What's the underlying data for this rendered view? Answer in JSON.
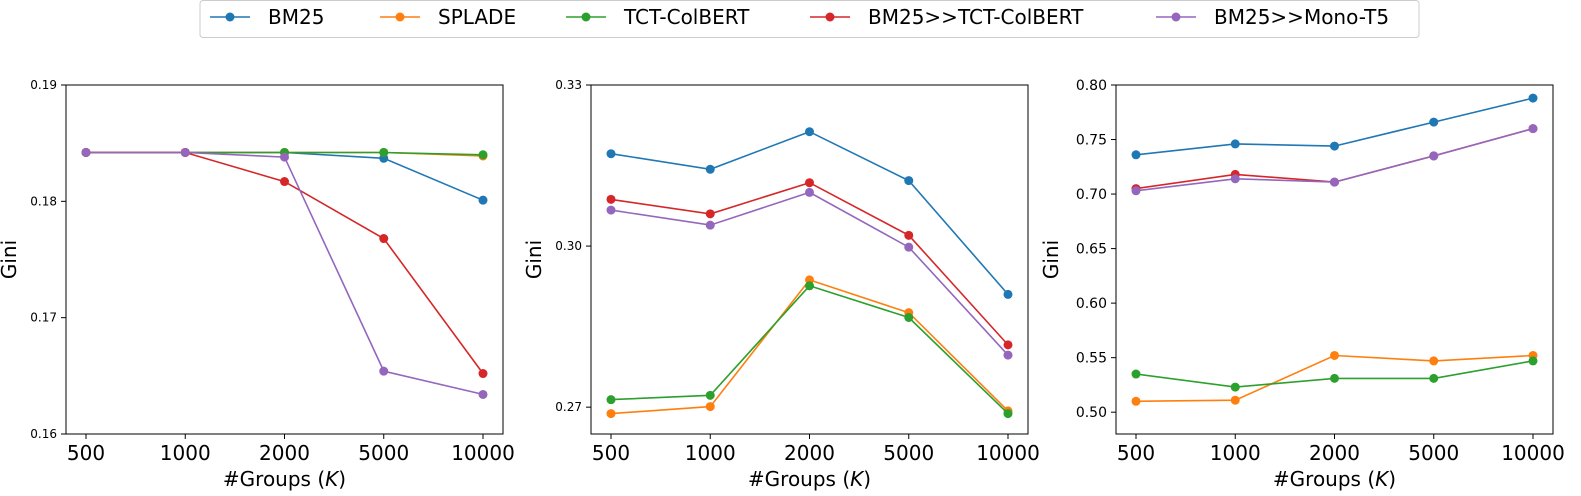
{
  "legend": {
    "position": "top-center",
    "entries": [
      {
        "name": "BM25",
        "color": "#1f77b4"
      },
      {
        "name": "SPLADE",
        "color": "#ff7f0e"
      },
      {
        "name": "TCT-ColBERT",
        "color": "#2ca02c"
      },
      {
        "name": "BM25>>TCT-ColBERT",
        "color": "#d62728"
      },
      {
        "name": "BM25>>Mono-T5",
        "color": "#9467bd"
      }
    ]
  },
  "chart_data": [
    {
      "type": "line",
      "title": "",
      "xlabel_prefix": "#Groups (",
      "xlabel_var": "K",
      "xlabel_suffix": ")",
      "ylabel": "Gini",
      "categories": [
        "500",
        "1000",
        "2000",
        "5000",
        "10000"
      ],
      "ylim": [
        0.16,
        0.19
      ],
      "yticks": [
        "0.16",
        "0.17",
        "0.18",
        "0.19"
      ],
      "grid": false,
      "series": [
        {
          "name": "BM25",
          "color": "#1f77b4",
          "values": [
            0.1842,
            0.1842,
            0.1842,
            0.1837,
            0.1801
          ]
        },
        {
          "name": "SPLADE",
          "color": "#ff7f0e",
          "values": [
            0.1842,
            0.1842,
            0.1842,
            0.1842,
            0.1839
          ]
        },
        {
          "name": "TCT-ColBERT",
          "color": "#2ca02c",
          "values": [
            0.1842,
            0.1842,
            0.1842,
            0.1842,
            0.184
          ]
        },
        {
          "name": "BM25>>TCT-ColBERT",
          "color": "#d62728",
          "values": [
            0.1842,
            0.1842,
            0.1817,
            0.1768,
            0.1652
          ]
        },
        {
          "name": "BM25>>Mono-T5",
          "color": "#9467bd",
          "values": [
            0.1842,
            0.1842,
            0.1838,
            0.1654,
            0.1634
          ]
        }
      ]
    },
    {
      "type": "line",
      "title": "",
      "xlabel_prefix": "#Groups (",
      "xlabel_var": "K",
      "xlabel_suffix": ")",
      "ylabel": "Gini",
      "categories": [
        "500",
        "1000",
        "2000",
        "5000",
        "10000"
      ],
      "ylim": [
        0.265,
        0.33
      ],
      "yticks": [
        "0.27",
        "0.30",
        "0.33"
      ],
      "ytick_values": [
        0.27,
        0.3,
        0.33
      ],
      "grid": false,
      "series": [
        {
          "name": "BM25",
          "color": "#1f77b4",
          "values": [
            0.3172,
            0.3143,
            0.3213,
            0.3122,
            0.291
          ]
        },
        {
          "name": "SPLADE",
          "color": "#ff7f0e",
          "values": [
            0.2688,
            0.2701,
            0.2937,
            0.2876,
            0.2693
          ]
        },
        {
          "name": "TCT-ColBERT",
          "color": "#2ca02c",
          "values": [
            0.2714,
            0.2722,
            0.2926,
            0.2867,
            0.2688
          ]
        },
        {
          "name": "BM25>>TCT-ColBERT",
          "color": "#d62728",
          "values": [
            0.3087,
            0.306,
            0.3118,
            0.302,
            0.2816
          ]
        },
        {
          "name": "BM25>>Mono-T5",
          "color": "#9467bd",
          "values": [
            0.3067,
            0.3039,
            0.31,
            0.2998,
            0.2797
          ]
        }
      ]
    },
    {
      "type": "line",
      "title": "",
      "xlabel_prefix": "#Groups (",
      "xlabel_var": "K",
      "xlabel_suffix": ")",
      "ylabel": "Gini",
      "categories": [
        "500",
        "1000",
        "2000",
        "5000",
        "10000"
      ],
      "ylim": [
        0.48,
        0.8
      ],
      "yticks": [
        "0.50",
        "0.55",
        "0.60",
        "0.65",
        "0.70",
        "0.75",
        "0.80"
      ],
      "ytick_values": [
        0.5,
        0.55,
        0.6,
        0.65,
        0.7,
        0.75,
        0.8
      ],
      "grid": false,
      "series": [
        {
          "name": "BM25",
          "color": "#1f77b4",
          "values": [
            0.736,
            0.746,
            0.744,
            0.766,
            0.788
          ]
        },
        {
          "name": "SPLADE",
          "color": "#ff7f0e",
          "values": [
            0.51,
            0.511,
            0.552,
            0.547,
            0.552
          ]
        },
        {
          "name": "TCT-ColBERT",
          "color": "#2ca02c",
          "values": [
            0.535,
            0.523,
            0.531,
            0.531,
            0.547
          ]
        },
        {
          "name": "BM25>>TCT-ColBERT",
          "color": "#d62728",
          "values": [
            0.705,
            0.718,
            0.711,
            0.735,
            0.76
          ]
        },
        {
          "name": "BM25>>Mono-T5",
          "color": "#9467bd",
          "values": [
            0.703,
            0.714,
            0.711,
            0.735,
            0.76
          ]
        }
      ]
    }
  ]
}
